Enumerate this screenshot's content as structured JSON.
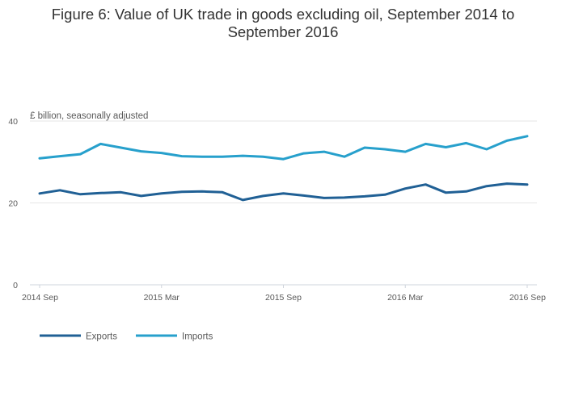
{
  "chart_data": {
    "type": "line",
    "title": "Figure 6: Value of UK trade in goods excluding oil, September 2014 to September 2016",
    "title_lines": [
      "Figure 6: Value of UK trade in goods excluding oil, September 2014 to",
      "September 2016"
    ],
    "ylabel": "£ billion, seasonally adjusted",
    "xlabel": "",
    "ylim": [
      0,
      40
    ],
    "yticks": [
      "0",
      "20",
      "40"
    ],
    "ytick_values": [
      0,
      20,
      40
    ],
    "xticks": [
      "2014 Sep",
      "2015 Mar",
      "2015 Sep",
      "2016 Mar",
      "2016 Sep"
    ],
    "xtick_indices": [
      0,
      6,
      12,
      18,
      24
    ],
    "x": [
      "2014 Sep",
      "2014 Oct",
      "2014 Nov",
      "2014 Dec",
      "2015 Jan",
      "2015 Feb",
      "2015 Mar",
      "2015 Apr",
      "2015 May",
      "2015 Jun",
      "2015 Jul",
      "2015 Aug",
      "2015 Sep",
      "2015 Oct",
      "2015 Nov",
      "2015 Dec",
      "2016 Jan",
      "2016 Feb",
      "2016 Mar",
      "2016 Apr",
      "2016 May",
      "2016 Jun",
      "2016 Jul",
      "2016 Aug",
      "2016 Sep"
    ],
    "grid": true,
    "legend": "bottom-left",
    "series": [
      {
        "name": "Exports",
        "color": "#206095",
        "values": [
          22.3,
          23.1,
          22.1,
          22.4,
          22.6,
          21.7,
          22.3,
          22.7,
          22.8,
          22.6,
          20.7,
          21.7,
          22.3,
          21.8,
          21.2,
          21.3,
          21.6,
          22.0,
          23.5,
          24.5,
          22.5,
          22.8,
          24.1,
          24.7,
          24.5
        ]
      },
      {
        "name": "Imports",
        "color": "#27a0cc",
        "values": [
          30.9,
          31.4,
          31.9,
          34.4,
          33.5,
          32.6,
          32.2,
          31.4,
          31.3,
          31.3,
          31.5,
          31.3,
          30.7,
          32.1,
          32.5,
          31.3,
          33.5,
          33.1,
          32.5,
          34.4,
          33.6,
          34.6,
          33.1,
          35.2,
          36.3
        ]
      }
    ]
  }
}
